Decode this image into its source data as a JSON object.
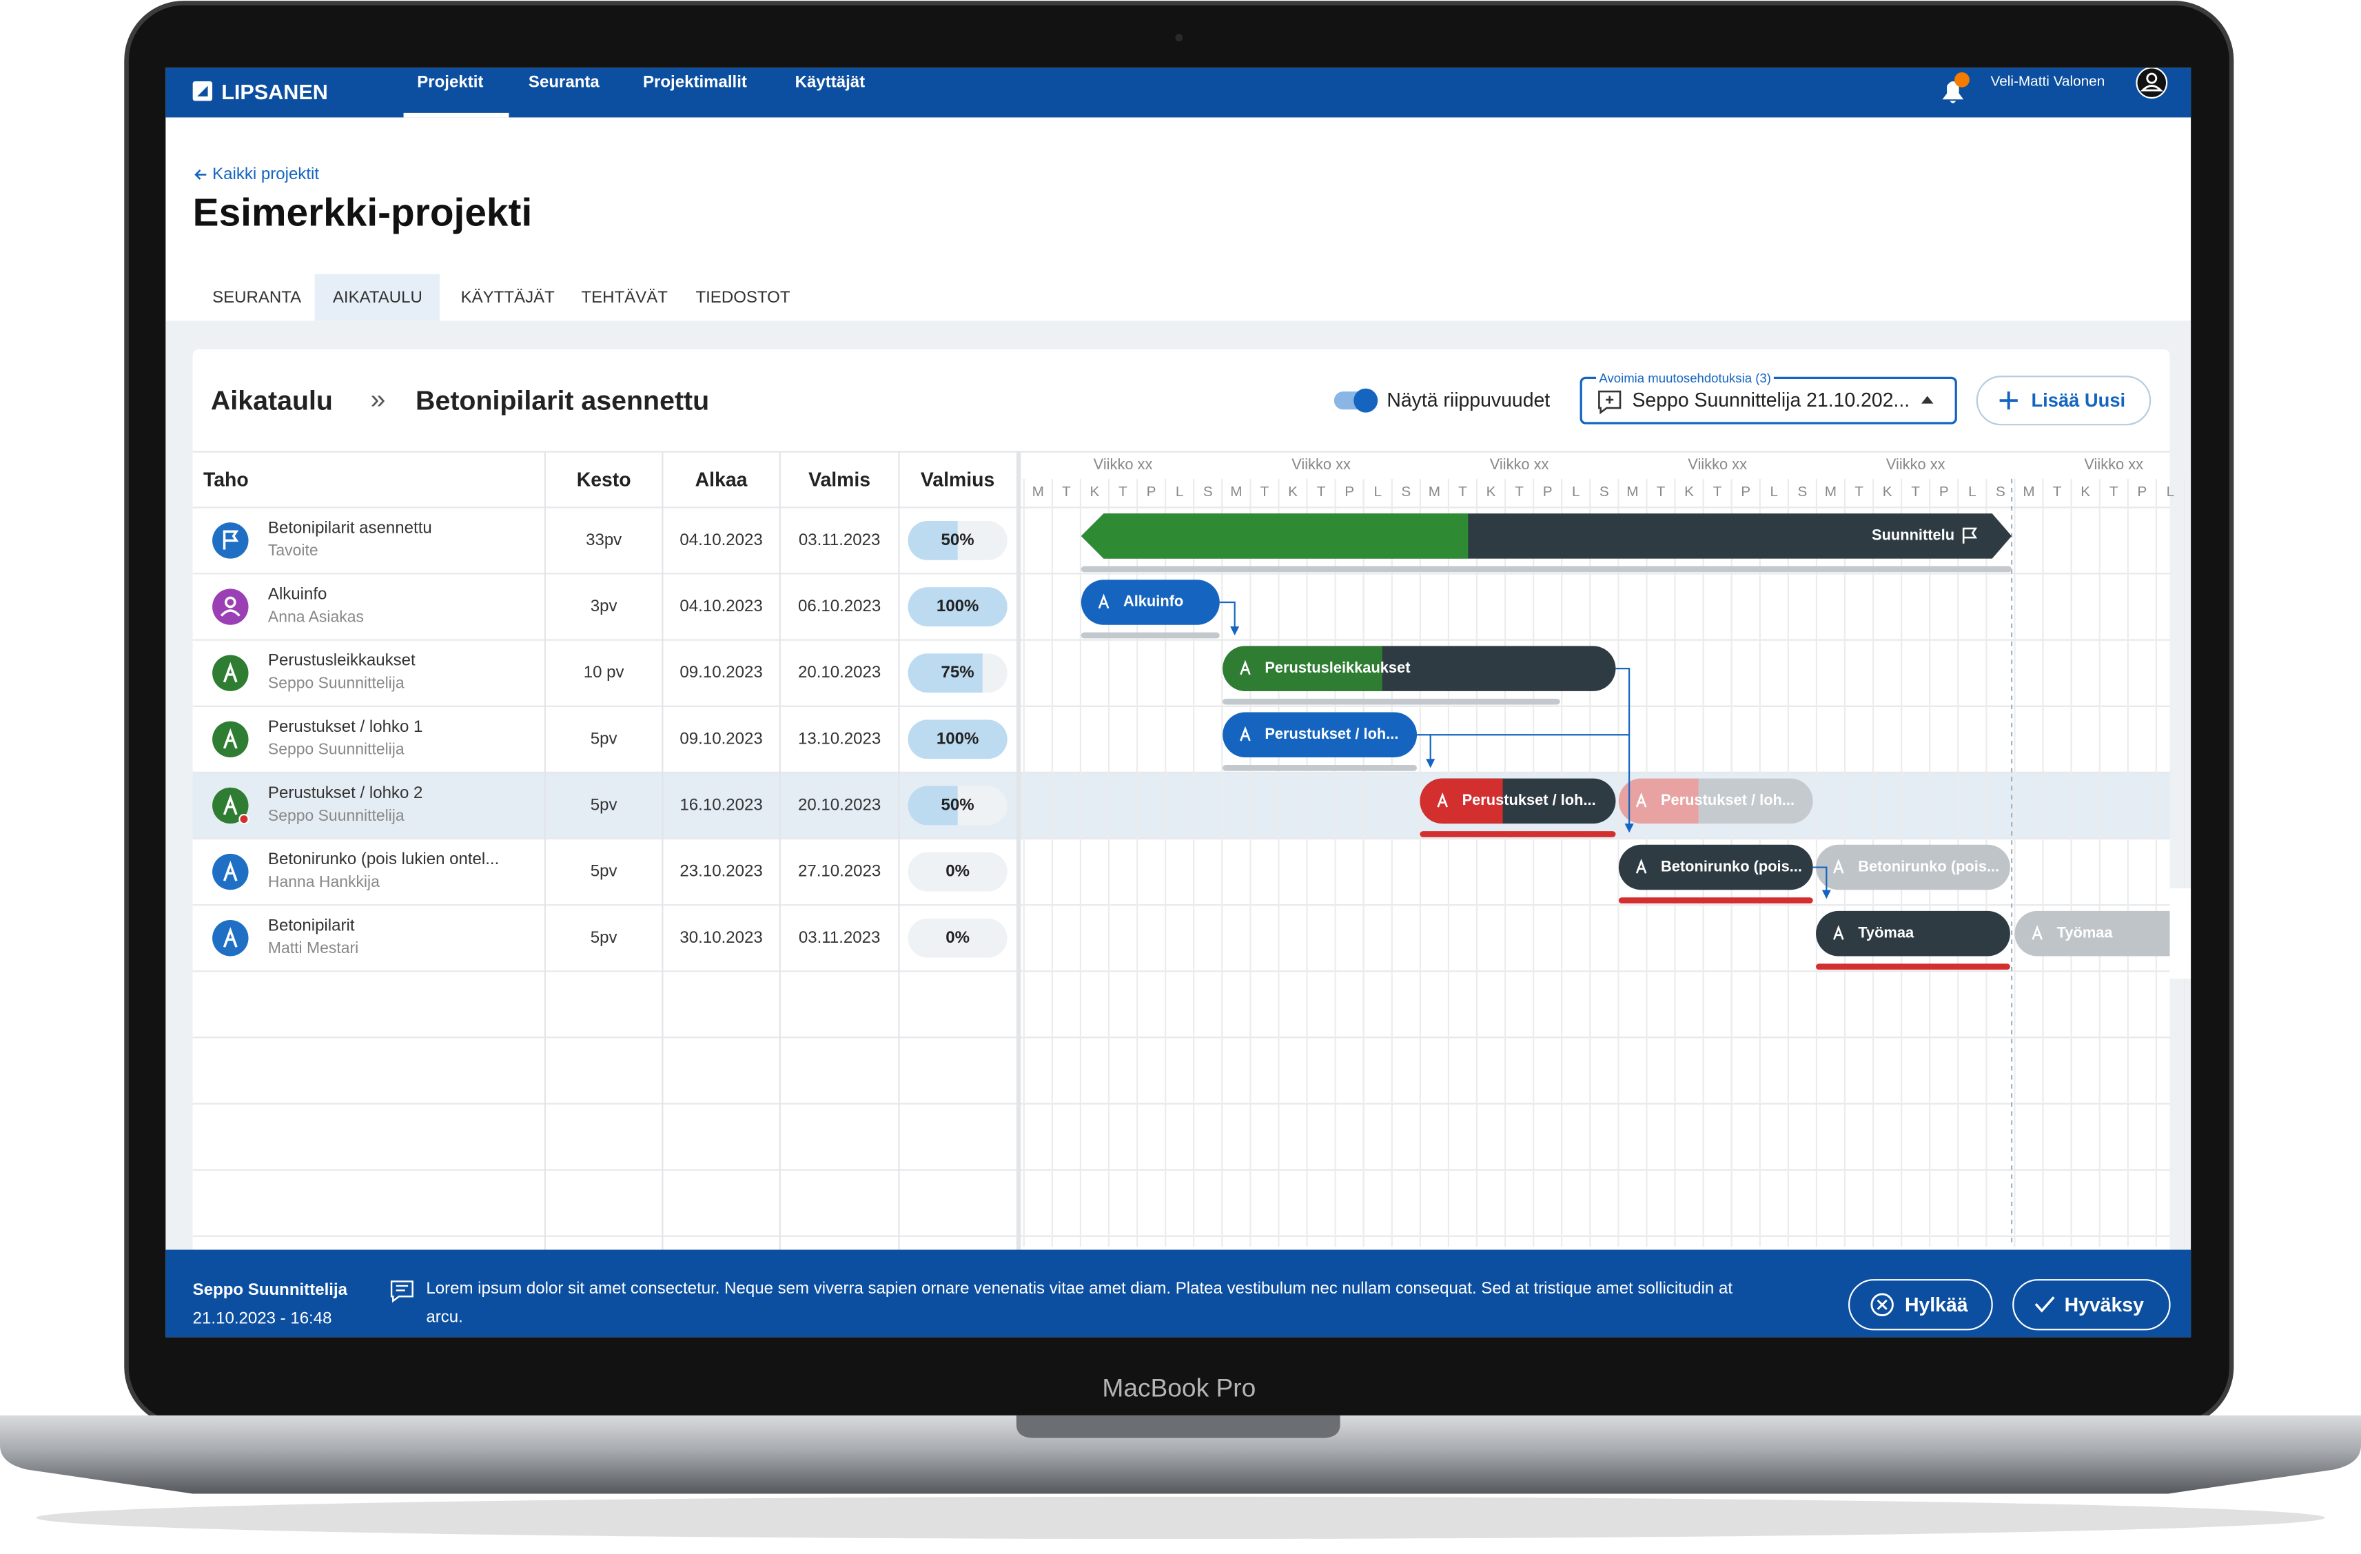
{
  "nav": {
    "logo": "LIPSANEN",
    "items": [
      "Projektit",
      "Seuranta",
      "Projektimallit",
      "Käyttäjät"
    ],
    "active": 0,
    "user": "Veli-Matti Valonen"
  },
  "back_link": "Kaikki projektit",
  "title": "Esimerkki-projekti",
  "tabs": {
    "items": [
      "SEURANTA",
      "AIKATAULU",
      "KÄYTTÄJÄT",
      "TEHTÄVÄT",
      "TIEDOSTOT"
    ],
    "active": 1
  },
  "panel": {
    "breadcrumb": [
      "Aikataulu",
      "Betonipilarit asennettu"
    ],
    "separator": "»",
    "toggle_label": "Näytä riippuvuudet",
    "dependencies_shown": true,
    "dropdown": {
      "legend": "Avoimia muutosehdotuksia (3)",
      "value": "Seppo Suunnittelija 21.10.202..."
    },
    "add_button": "Lisää Uusi"
  },
  "table": {
    "columns": [
      "Taho",
      "Kesto",
      "Alkaa",
      "Valmis",
      "Valmius"
    ],
    "highlighted_row": 4,
    "rows": [
      {
        "name": "Betonipilarit asennettu",
        "subtitle": "Tavoite",
        "duration": "33pv",
        "start": "04.10.2023",
        "end": "03.11.2023",
        "progress": 50,
        "progress_label": "50%"
      },
      {
        "name": "Alkuinfo",
        "subtitle": "Anna Asiakas",
        "duration": "3pv",
        "start": "04.10.2023",
        "end": "06.10.2023",
        "progress": 100,
        "progress_label": "100%"
      },
      {
        "name": "Perustusleikkaukset",
        "subtitle": "Seppo Suunnittelija",
        "duration": "10 pv",
        "start": "09.10.2023",
        "end": "20.10.2023",
        "progress": 75,
        "progress_label": "75%"
      },
      {
        "name": "Perustukset / lohko 1",
        "subtitle": "Seppo Suunnittelija",
        "duration": "5pv",
        "start": "09.10.2023",
        "end": "13.10.2023",
        "progress": 100,
        "progress_label": "100%"
      },
      {
        "name": "Perustukset / lohko 2",
        "subtitle": "Seppo Suunnittelija",
        "duration": "5pv",
        "start": "16.10.2023",
        "end": "20.10.2023",
        "progress": 50,
        "progress_label": "50%"
      },
      {
        "name": "Betonirunko (pois lukien ontel...",
        "subtitle": "Hanna Hankkija",
        "duration": "5pv",
        "start": "23.10.2023",
        "end": "27.10.2023",
        "progress": 0,
        "progress_label": "0%"
      },
      {
        "name": "Betonipilarit",
        "subtitle": "Matti Mestari",
        "duration": "5pv",
        "start": "30.10.2023",
        "end": "03.11.2023",
        "progress": 0,
        "progress_label": "0%"
      }
    ]
  },
  "gantt": {
    "weeks": [
      "Viikko xx",
      "Viikko xx",
      "Viikko xx",
      "Viikko xx",
      "Viikko xx",
      "Viikko xx"
    ],
    "days": [
      "M",
      "T",
      "K",
      "T",
      "P",
      "L",
      "S"
    ],
    "bar_labels": [
      "Suunnittelu",
      "Alkuinfo",
      "Perustusleikkaukset",
      "Perustukset / loh...",
      "Perustukset / loh...",
      "Perustukset / loh...",
      "Betonirunko (pois...",
      "Betonirunko (pois...",
      "Työmaa",
      "Työmaa"
    ]
  },
  "footer": {
    "author": "Seppo Suunnittelija",
    "timestamp": "21.10.2023 - 16:48",
    "message": "Lorem ipsum dolor sit amet consectetur. Neque sem viverra sapien ornare venenatis vitae amet diam. Platea vestibulum nec nullam consequat. Sed at tristique amet sollicitudin at arcu.",
    "reject": "Hylkää",
    "approve": "Hyväksy"
  },
  "device_label": "MacBook Pro"
}
